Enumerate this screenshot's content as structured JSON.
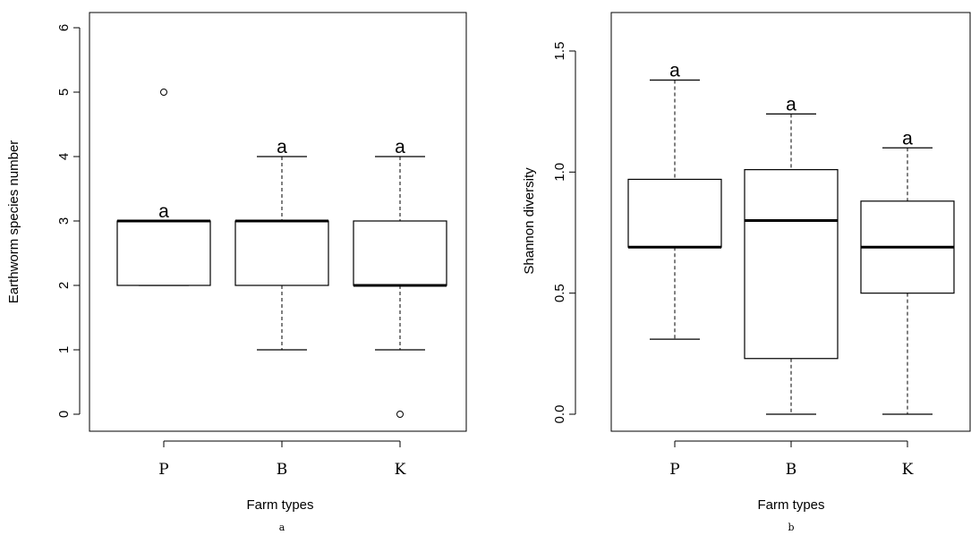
{
  "chart_data": [
    {
      "type": "boxplot",
      "xlabel": "Farm types",
      "ylabel": "Earthworm species number",
      "panel_label": "a",
      "ylim": [
        0,
        6
      ],
      "yticks": [
        "0",
        "1",
        "2",
        "3",
        "4",
        "5",
        "6"
      ],
      "ytick_values": [
        0,
        1,
        2,
        3,
        4,
        5,
        6
      ],
      "categories": [
        "P",
        "B",
        "K"
      ],
      "boxes": [
        {
          "min": 2,
          "q1": 2,
          "median": 3,
          "q3": 3,
          "max": 3,
          "outliers": [
            5
          ],
          "letter": "a"
        },
        {
          "min": 1,
          "q1": 2,
          "median": 3,
          "q3": 3,
          "max": 4,
          "outliers": [],
          "letter": "a"
        },
        {
          "min": 1,
          "q1": 2,
          "median": 2,
          "q3": 3,
          "max": 4,
          "outliers": [
            0
          ],
          "letter": "a"
        }
      ],
      "grid": false
    },
    {
      "type": "boxplot",
      "xlabel": "Farm types",
      "ylabel": "Shannon diversity",
      "panel_label": "b",
      "ylim": [
        0,
        1.5
      ],
      "yticks": [
        "0.0",
        "0.5",
        "1.0",
        "1.5"
      ],
      "ytick_values": [
        0,
        0.5,
        1.0,
        1.5
      ],
      "categories": [
        "P",
        "B",
        "K"
      ],
      "boxes": [
        {
          "min": 0.31,
          "q1": 0.69,
          "median": 0.69,
          "q3": 0.97,
          "max": 1.38,
          "outliers": [],
          "letter": "a"
        },
        {
          "min": 0.0,
          "q1": 0.23,
          "median": 0.8,
          "q3": 1.01,
          "max": 1.24,
          "outliers": [],
          "letter": "a"
        },
        {
          "min": 0.0,
          "q1": 0.5,
          "median": 0.69,
          "q3": 0.88,
          "max": 1.1,
          "outliers": [],
          "letter": "a"
        }
      ],
      "grid": false
    }
  ]
}
